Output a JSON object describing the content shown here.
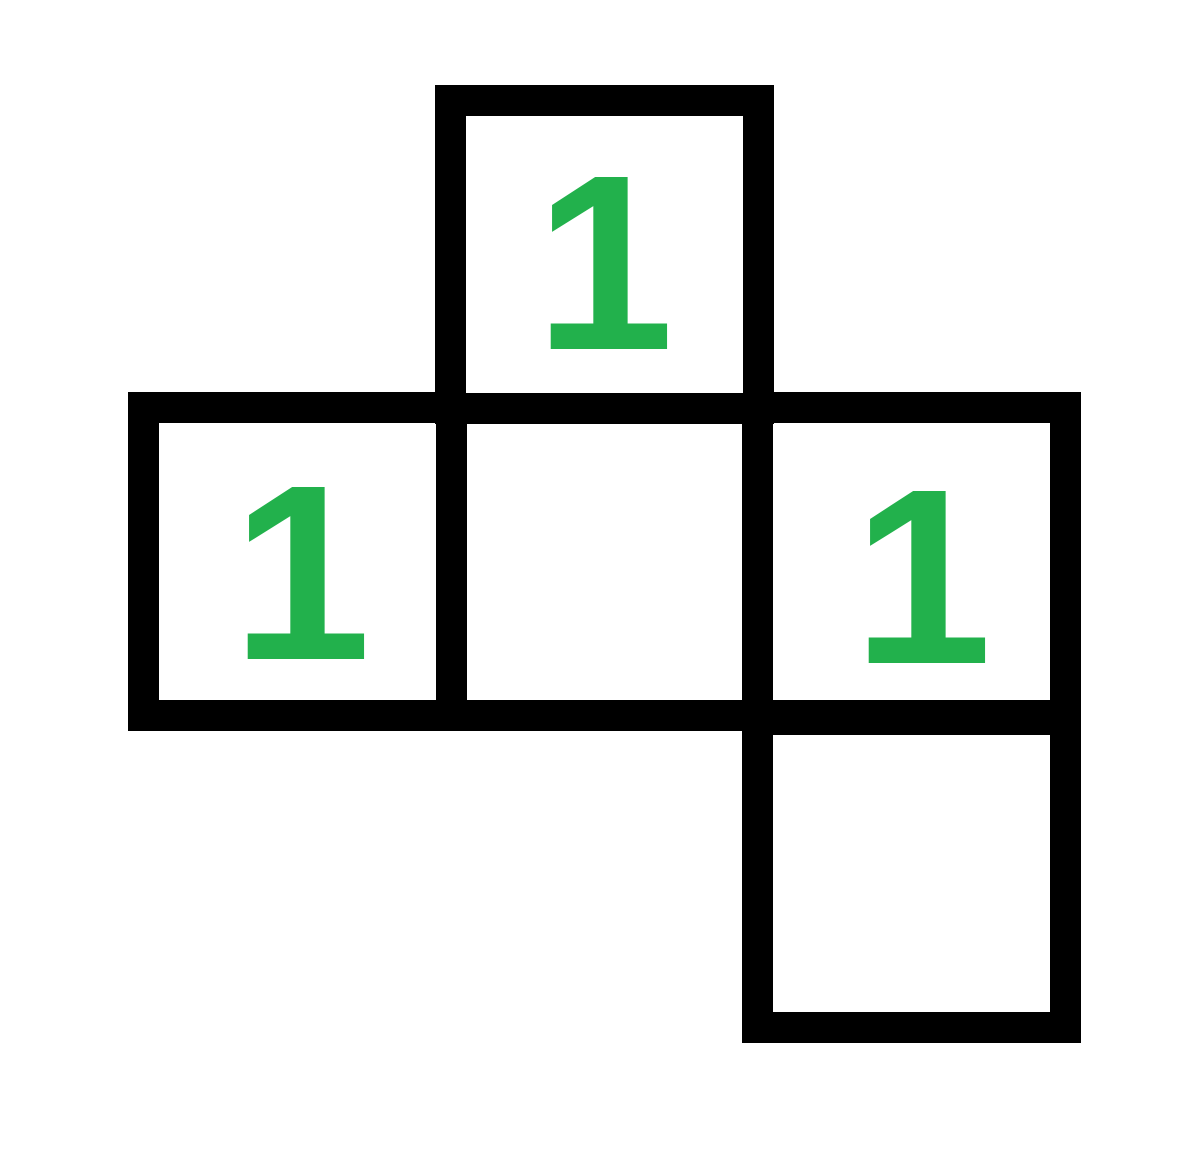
{
  "net": {
    "colors": {
      "border": "#000000",
      "number": "#22b14c",
      "background": "#ffffff"
    },
    "cells": {
      "top": "1",
      "left": "1",
      "center": "",
      "right": "1",
      "bottom": ""
    }
  }
}
